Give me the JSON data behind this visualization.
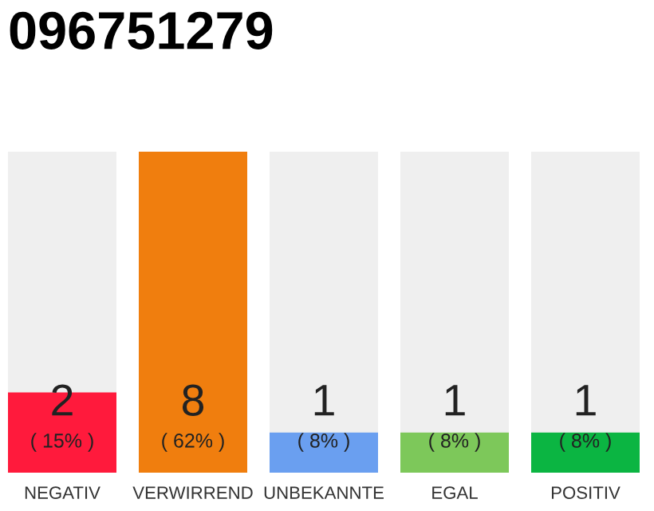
{
  "chart_data": {
    "type": "bar",
    "title": "096751279",
    "categories": [
      "NEGATIV",
      "VERWIRREND",
      "UNBEKANNTE",
      "EGAL",
      "POSITIV"
    ],
    "values": [
      2,
      8,
      1,
      1,
      1
    ],
    "colors": [
      "#ff1a3c",
      "#f07e0e",
      "#6a9ff0",
      "#7dc85a",
      "#0bb542"
    ],
    "data_labels": true,
    "annotations": [
      "( 15% )",
      "( 62% )",
      "( 8% )",
      "( 8% )",
      "( 8% )"
    ],
    "grid": false,
    "legend": false
  }
}
